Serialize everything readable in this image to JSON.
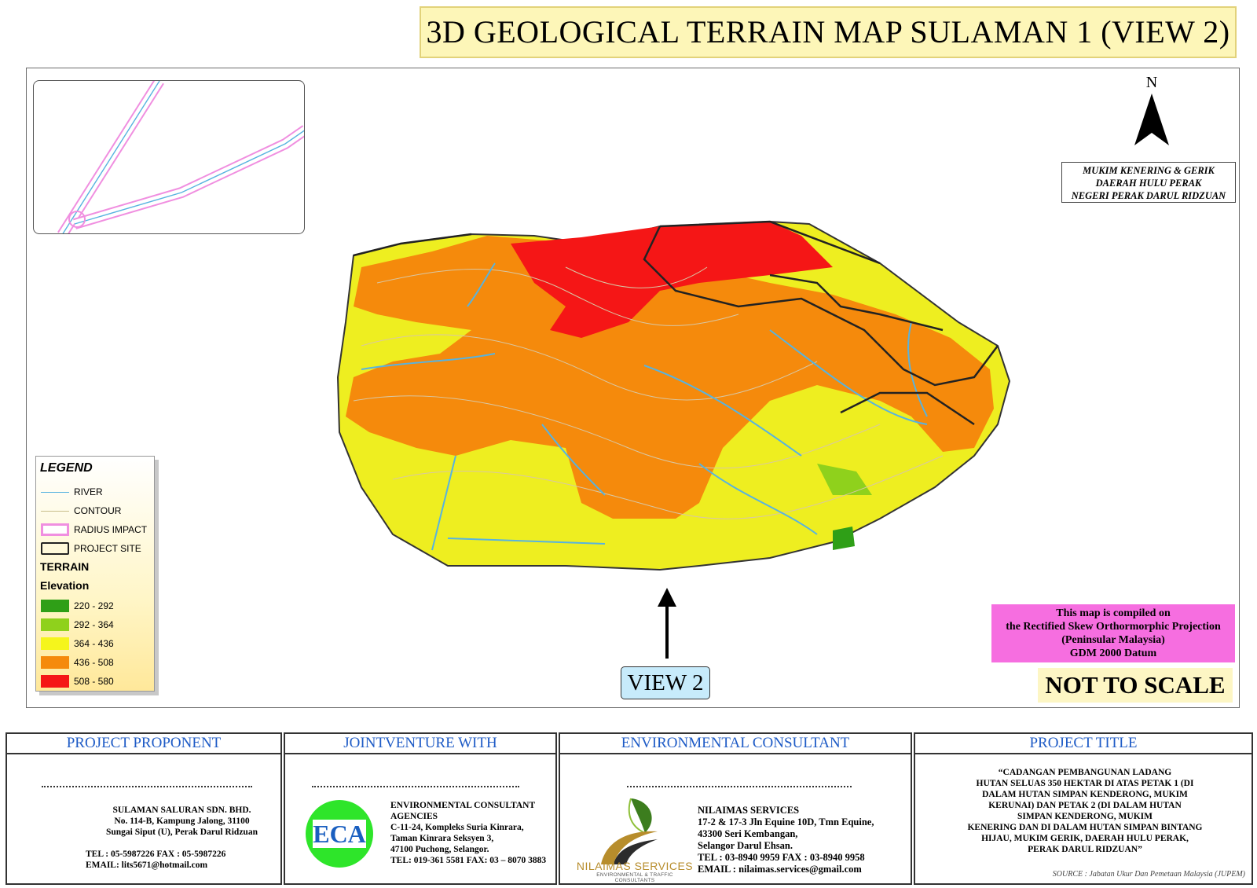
{
  "title": "3D GEOLOGICAL TERRAIN MAP SULAMAN 1  (VIEW 2)",
  "north_label": "N",
  "location": [
    "MUKIM KENERING & GERIK",
    "DAERAH HULU PERAK",
    "NEGERI PERAK DARUL RIDZUAN"
  ],
  "legend": {
    "title": "LEGEND",
    "items": [
      {
        "label": "RIVER",
        "color": "#57b3e0"
      },
      {
        "label": "CONTOUR",
        "color": "#c9bd8a"
      },
      {
        "label": "RADIUS IMPACT",
        "color": "#f08fe0"
      },
      {
        "label": "PROJECT SITE",
        "color": "#222222"
      }
    ],
    "terrain_title": "TERRAIN",
    "elevation_title": "Elevation",
    "elevation": [
      {
        "label": "220 - 292",
        "color": "#2f9f17"
      },
      {
        "label": "292 - 364",
        "color": "#8fd11c"
      },
      {
        "label": "364 - 436",
        "color": "#f5f51c"
      },
      {
        "label": "436 - 508",
        "color": "#f58a0c"
      },
      {
        "label": "508 - 580",
        "color": "#f51616"
      }
    ]
  },
  "projection": [
    "This map is compiled on",
    "the Rectified Skew Orthormorphic Projection",
    "(Peninsular Malaysia)",
    "GDM 2000 Datum"
  ],
  "scale_note": "NOT TO SCALE",
  "view_label": "VIEW 2",
  "footer": {
    "proponent": {
      "heading": "PROJECT PROPONENT",
      "lines": [
        "SULAMAN SALURAN SDN. BHD.",
        "No. 114-B, Kampung Jalong, 31100",
        "Sungai Siput (U), Perak Darul Ridzuan",
        "TEL : 05-5987226  FAX : 05-5987226",
        "EMAIL: lits5671@hotmail.com"
      ]
    },
    "jointventure": {
      "heading": "JOINTVENTURE WITH",
      "logo_text": "ECA",
      "lines": [
        "ENVIRONMENTAL CONSULTANT",
        "AGENCIES",
        "C-11-24, Kompleks Suria Kinrara,",
        "Taman Kinrara Seksyen 3,",
        "47100 Puchong, Selangor.",
        "TEL: 019-361 5581 FAX: 03 – 8070 3883"
      ]
    },
    "consultant": {
      "heading": "ENVIRONMENTAL CONSULTANT",
      "logo_name": "NILAIMAS SERVICES",
      "logo_sub": "ENVIRONMENTAL & TRAFFIC CONSULTANTS",
      "lines": [
        "NILAIMAS SERVICES",
        "17-2 & 17-3 Jln Equine 10D, Tmn Equine,",
        "43300 Seri Kembangan,",
        "Selangor Darul Ehsan.",
        "TEL : 03-8940 9959  FAX : 03-8940 9958",
        "EMAIL : nilaimas.services@gmail.com"
      ]
    },
    "title": {
      "heading": "PROJECT TITLE",
      "lines": [
        "“CADANGAN PEMBANGUNAN LADANG",
        "HUTAN SELUAS 350 HEKTAR DI ATAS PETAK 1 (DI",
        "DALAM HUTAN SIMPAN KENDERONG, MUKIM",
        "KERUNAI) DAN PETAK 2 (DI DALAM HUTAN",
        "SIMPAN KENDERONG, MUKIM",
        "KENERING DAN DI DALAM HUTAN SIMPAN BINTANG",
        "HIJAU, MUKIM GERIK, DAERAH HULU PERAK,",
        "PERAK DARUL RIDZUAN”"
      ],
      "source": "SOURCE : Jabatan Ukur Dan Pemetaan Malaysia (JUPEM)"
    }
  }
}
